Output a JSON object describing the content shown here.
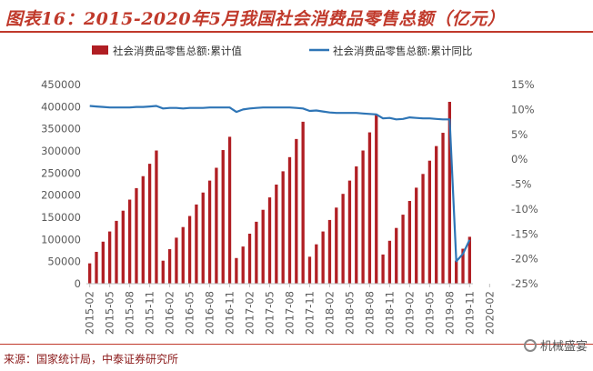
{
  "title": "图表16：2015-2020年5月我国社会消费品零售总额（亿元）",
  "source": "来源：国家统计局，中泰证券研究所",
  "watermark": "机械盛宴",
  "colors": {
    "bar": "#b01e23",
    "line": "#2e75b6",
    "accent": "#c0392b",
    "axis_text": "#595959"
  },
  "chart_data": {
    "type": "bar+line",
    "legend_position": "top",
    "grid": false,
    "y_left_ticks": [
      "0",
      "50000",
      "100000",
      "150000",
      "200000",
      "250000",
      "300000",
      "350000",
      "400000",
      "450000"
    ],
    "y_left_range": [
      0,
      450000
    ],
    "y_right_ticks": [
      "-25%",
      "-20%",
      "-15%",
      "-10%",
      "-5%",
      "0%",
      "5%",
      "10%",
      "15%"
    ],
    "y_right_range": [
      -25,
      15
    ],
    "x_tick_labels": [
      "2015-02",
      "2015-05",
      "2015-08",
      "2015-11",
      "2016-02",
      "2016-05",
      "2016-08",
      "2016-11",
      "2017-02",
      "2017-05",
      "2017-08",
      "2017-11",
      "2018-02",
      "2018-05",
      "2018-08",
      "2018-11",
      "2019-02",
      "2019-05",
      "2019-08",
      "2019-11",
      "2020-02"
    ],
    "x_start": "2015-02",
    "series": [
      {
        "name": "社会消费品零售总额:累计值",
        "axis": "left",
        "type": "bar",
        "values": [
          46000,
          72000,
          95000,
          118000,
          142000,
          165000,
          190000,
          216000,
          243000,
          271000,
          301000,
          52000,
          78000,
          104000,
          128000,
          153000,
          179000,
          206000,
          233000,
          262000,
          302000,
          332000,
          58000,
          84000,
          113000,
          140000,
          167000,
          195000,
          224000,
          254000,
          286000,
          327000,
          366000,
          61000,
          89000,
          118000,
          144000,
          172000,
          203000,
          233000,
          265000,
          301000,
          342000,
          381000,
          66000,
          97000,
          126000,
          156000,
          187000,
          217000,
          248000,
          278000,
          311000,
          341000,
          411000,
          52000,
          79000,
          106000
        ]
      },
      {
        "name": "社会消费品零售总额:累计同比",
        "axis": "right",
        "type": "line",
        "values": [
          10.7,
          10.6,
          10.5,
          10.4,
          10.4,
          10.4,
          10.4,
          10.5,
          10.5,
          10.6,
          10.7,
          10.2,
          10.3,
          10.3,
          10.2,
          10.3,
          10.3,
          10.3,
          10.4,
          10.4,
          10.4,
          10.4,
          9.5,
          10.0,
          10.2,
          10.3,
          10.4,
          10.4,
          10.4,
          10.4,
          10.4,
          10.3,
          10.2,
          9.7,
          9.8,
          9.6,
          9.4,
          9.3,
          9.3,
          9.3,
          9.3,
          9.2,
          9.1,
          9.0,
          8.2,
          8.3,
          8.0,
          8.1,
          8.4,
          8.3,
          8.2,
          8.2,
          8.1,
          8.0,
          8.0,
          -20.5,
          -19.0,
          -16.2
        ]
      }
    ]
  }
}
